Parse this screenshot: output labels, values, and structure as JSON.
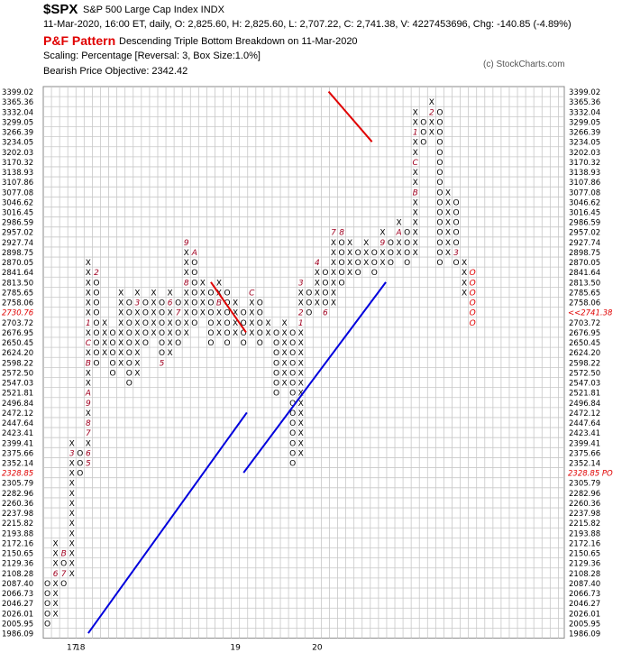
{
  "header": {
    "ticker": "$SPX",
    "description": "S&P 500 Large Cap Index  INDX",
    "info_line": "11-Mar-2020, 16:00 ET, daily, O: 2,825.60, H: 2,825.60, L: 2,707.22, C: 2,741.38, V: 4227453696, Chg: -140.85 (-4.89%)",
    "pattern_label": "P&F Pattern",
    "pattern_desc": "Descending Triple Bottom Breakdown on 11-Mar-2020",
    "scaling": "Scaling: Percentage [Reversal: 3, Box Size:1.0%]",
    "objective": "Bearish Price Objective: 2342.42",
    "copyright": "(c) StockCharts.com"
  },
  "colors": {
    "x_mark": "#000000",
    "o_mark": "#000000",
    "month_marker": "#a00020",
    "recent_o": "#e00000",
    "trend_support": "#0000dd",
    "trend_resistance": "#e00000",
    "grid": "#c8c8c8",
    "highlight_label": "#e00000"
  },
  "chart_data": {
    "type": "point-and-figure",
    "box_size_pct": 1.0,
    "reversal": 3,
    "y_axis_levels": [
      "3399.02",
      "3365.36",
      "3332.04",
      "3299.05",
      "3266.39",
      "3234.05",
      "3202.03",
      "3170.32",
      "3138.93",
      "3107.86",
      "3077.08",
      "3046.62",
      "3016.45",
      "2986.59",
      "2957.02",
      "2927.74",
      "2898.75",
      "2870.05",
      "2841.64",
      "2813.50",
      "2785.65",
      "2758.06",
      "2730.76",
      "2703.72",
      "2676.95",
      "2650.45",
      "2624.20",
      "2598.22",
      "2572.50",
      "2547.03",
      "2521.81",
      "2496.84",
      "2472.12",
      "2447.64",
      "2423.41",
      "2399.41",
      "2375.66",
      "2352.14",
      "2328.85",
      "2305.79",
      "2282.96",
      "2260.36",
      "2237.98",
      "2215.82",
      "2193.88",
      "2172.16",
      "2150.65",
      "2129.36",
      "2108.28",
      "2087.40",
      "2066.73",
      "2046.27",
      "2026.01",
      "2005.95",
      "1986.09"
    ],
    "highlighted_left": "2730.76",
    "highlighted_left_2": "2328.85",
    "right_annotations": [
      {
        "level": "2730.76",
        "text": "<<2741.38"
      },
      {
        "level": "2328.85",
        "text": "2328.85 PO"
      }
    ],
    "x_axis_labels": [
      {
        "col": 3,
        "text": "17"
      },
      {
        "col": 4,
        "text": "18"
      },
      {
        "col": 23,
        "text": "19"
      },
      {
        "col": 33,
        "text": "20"
      }
    ],
    "columns": [
      {
        "type": "O",
        "top": 2087.4,
        "bottom": 2005.95
      },
      {
        "type": "X",
        "bottom": 2026.01,
        "top": 2172.16,
        "markers": {
          "2108.28": "6"
        }
      },
      {
        "type": "O",
        "top": 2150.65,
        "bottom": 2087.4,
        "markers": {
          "2108.28": "7",
          "2150.65": "B"
        }
      },
      {
        "type": "X",
        "bottom": 2108.28,
        "top": 2399.41,
        "markers": {
          "2375.66": "3"
        }
      },
      {
        "type": "O",
        "top": 2375.66,
        "bottom": 2328.85
      },
      {
        "type": "X",
        "bottom": 2352.14,
        "top": 2870.05,
        "markers": {
          "2352.14": "5",
          "2375.66": "6",
          "2423.41": "7",
          "2447.64": "8",
          "2496.84": "9",
          "2521.81": "A",
          "2598.22": "B",
          "2650.45": "C",
          "2703.72": "1"
        }
      },
      {
        "type": "O",
        "top": 2841.64,
        "bottom": 2598.22,
        "markers": {
          "2841.64": "2"
        }
      },
      {
        "type": "X",
        "bottom": 2624.2,
        "top": 2703.72
      },
      {
        "type": "O",
        "top": 2676.95,
        "bottom": 2572.5
      },
      {
        "type": "X",
        "bottom": 2598.22,
        "top": 2785.65
      },
      {
        "type": "O",
        "top": 2758.06,
        "bottom": 2547.03
      },
      {
        "type": "X",
        "bottom": 2572.5,
        "top": 2785.65,
        "markers": {
          "2758.06": "3"
        }
      },
      {
        "type": "O",
        "top": 2758.06,
        "bottom": 2650.45
      },
      {
        "type": "X",
        "bottom": 2676.95,
        "top": 2785.65,
        "markers": {
          "2572.50": "4"
        }
      },
      {
        "type": "O",
        "top": 2758.06,
        "bottom": 2598.22,
        "markers": {
          "2598.22": "5"
        }
      },
      {
        "type": "X",
        "bottom": 2624.2,
        "top": 2785.65,
        "markers": {
          "2758.06": "6"
        }
      },
      {
        "type": "O",
        "top": 2758.06,
        "bottom": 2650.45,
        "markers": {
          "2730.76": "7"
        }
      },
      {
        "type": "X",
        "bottom": 2676.95,
        "top": 2927.74,
        "markers": {
          "2927.74": "9",
          "2813.50": "8"
        }
      },
      {
        "type": "O",
        "top": 2898.75,
        "bottom": 2703.72,
        "markers": {
          "2898.75": "A"
        }
      },
      {
        "type": "X",
        "bottom": 2730.76,
        "top": 2813.5
      },
      {
        "type": "O",
        "top": 2785.65,
        "bottom": 2650.45
      },
      {
        "type": "X",
        "bottom": 2676.95,
        "top": 2813.5,
        "markers": {
          "2758.06": "B"
        }
      },
      {
        "type": "O",
        "top": 2785.65,
        "bottom": 2650.45
      },
      {
        "type": "X",
        "bottom": 2676.95,
        "top": 2758.06
      },
      {
        "type": "O",
        "top": 2730.76,
        "bottom": 2650.45
      },
      {
        "type": "X",
        "bottom": 2676.95,
        "top": 2785.65,
        "markers": {
          "2785.65": "C"
        }
      },
      {
        "type": "O",
        "top": 2758.06,
        "bottom": 2650.45
      },
      {
        "type": "X",
        "bottom": 2676.95,
        "top": 2703.72
      },
      {
        "type": "O",
        "top": 2676.95,
        "bottom": 2521.81
      },
      {
        "type": "X",
        "bottom": 2547.03,
        "top": 2703.72
      },
      {
        "type": "O",
        "top": 2676.95,
        "bottom": 2352.14
      },
      {
        "type": "X",
        "bottom": 2375.66,
        "top": 2813.5,
        "markers": {
          "2813.50": "3",
          "2730.76": "2",
          "2703.72": "1"
        }
      },
      {
        "type": "O",
        "top": 2785.65,
        "bottom": 2730.76
      },
      {
        "type": "X",
        "bottom": 2758.06,
        "top": 2870.05,
        "markers": {
          "2870.05": "4"
        }
      },
      {
        "type": "O",
        "top": 2841.64,
        "bottom": 2730.76,
        "markers": {
          "2730.76": "6"
        }
      },
      {
        "type": "X",
        "bottom": 2758.06,
        "top": 2957.02,
        "markers": {
          "2957.02": "7"
        }
      },
      {
        "type": "O",
        "top": 2957.02,
        "bottom": 2813.5,
        "markers": {
          "2957.02": "8"
        }
      },
      {
        "type": "X",
        "bottom": 2841.64,
        "top": 2927.74
      },
      {
        "type": "O",
        "top": 2898.75,
        "bottom": 2841.64
      },
      {
        "type": "X",
        "bottom": 2870.05,
        "top": 2927.74
      },
      {
        "type": "O",
        "top": 2898.75,
        "bottom": 2841.64
      },
      {
        "type": "X",
        "bottom": 2870.05,
        "top": 2957.02,
        "markers": {
          "2927.74": "9"
        }
      },
      {
        "type": "O",
        "top": 2927.74,
        "bottom": 2870.05
      },
      {
        "type": "X",
        "bottom": 2898.75,
        "top": 2986.59,
        "markers": {
          "2957.02": "A"
        }
      },
      {
        "type": "O",
        "top": 2957.02,
        "bottom": 2870.05
      },
      {
        "type": "X",
        "bottom": 2898.75,
        "top": 3332.04,
        "markers": {
          "3077.08": "B",
          "3170.32": "C",
          "3266.39": "1"
        }
      },
      {
        "type": "O",
        "top": 3299.05,
        "bottom": 3234.05
      },
      {
        "type": "X",
        "bottom": 3266.39,
        "top": 3365.36,
        "markers": {
          "3332.04": "2"
        }
      },
      {
        "type": "O",
        "top": 3332.04,
        "bottom": 2870.05
      },
      {
        "type": "X",
        "bottom": 2898.75,
        "top": 3077.08
      },
      {
        "type": "O",
        "top": 3046.62,
        "bottom": 2870.05,
        "markers": {
          "2898.75": "3"
        }
      },
      {
        "type": "X",
        "bottom": 2785.65,
        "top": 2870.05
      },
      {
        "type": "O",
        "top": 2841.64,
        "bottom": 2703.72,
        "recent": true
      }
    ],
    "trendlines": [
      {
        "kind": "support",
        "from": {
          "col": 5.0,
          "level": "1986.09"
        },
        "to": {
          "col": 24.4,
          "level": "2472.12"
        }
      },
      {
        "kind": "support",
        "from": {
          "col": 24.0,
          "level": "2328.85"
        },
        "to": {
          "col": 41.4,
          "level": "2813.50"
        }
      },
      {
        "kind": "resistance",
        "from": {
          "col": 20.0,
          "level": "2813.50"
        },
        "to": {
          "col": 24.3,
          "level": "2676.95"
        }
      },
      {
        "kind": "resistance",
        "from": {
          "col": 34.4,
          "level": "3399.02"
        },
        "to": {
          "col": 39.7,
          "level": "3234.05"
        }
      }
    ]
  }
}
